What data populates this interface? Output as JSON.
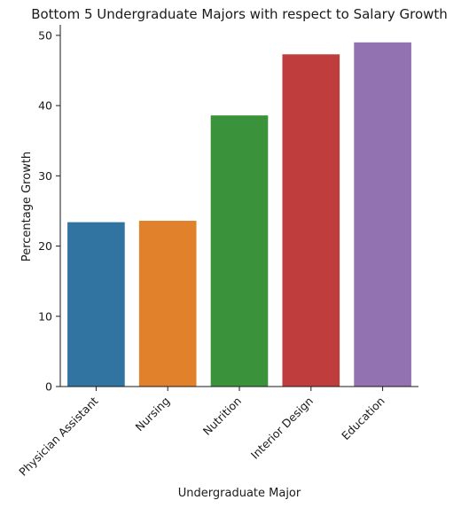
{
  "chart_data": {
    "type": "bar",
    "title": "Bottom 5 Undergraduate Majors with respect to Salary Growth",
    "xlabel": "Undergraduate Major",
    "ylabel": "Percentage Growth",
    "categories": [
      "Physician Assistant",
      "Nursing",
      "Nutrition",
      "Interior Design",
      "Education"
    ],
    "values": [
      23.4,
      23.6,
      38.6,
      47.3,
      49.0
    ],
    "colors": [
      "#3274a1",
      "#e1812c",
      "#3a923a",
      "#c03d3e",
      "#9372b2"
    ],
    "ylim": [
      0,
      51.5
    ],
    "yticks": [
      0,
      10,
      20,
      30,
      40,
      50
    ],
    "grid": false,
    "legend": "none"
  }
}
